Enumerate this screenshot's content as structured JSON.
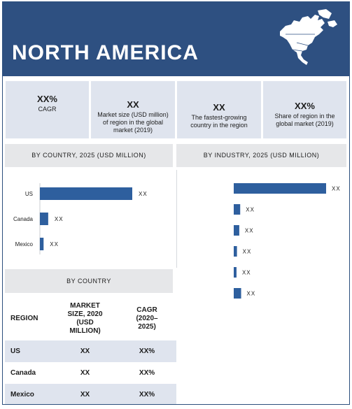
{
  "header": {
    "title": "NORTH AMERICA"
  },
  "kpis": [
    {
      "value": "XX%",
      "label": "CAGR"
    },
    {
      "value": "XX",
      "label": "Market size (USD million) of region in the global market (2019)"
    },
    {
      "value": "XX",
      "label": "The fastest-growing country in the region"
    },
    {
      "value": "XX%",
      "label": "Share of region in the global market (2019)"
    }
  ],
  "sections": {
    "by_country_head": "BY COUNTRY, 2025 (USD MILLION)",
    "by_industry_head": "BY INDUSTRY, 2025 (USD MILLION)",
    "table_head": "BY COUNTRY"
  },
  "chart_data": [
    {
      "type": "bar",
      "orientation": "horizontal",
      "title": "BY COUNTRY, 2025 (USD MILLION)",
      "categories": [
        "US",
        "Canada",
        "Mexico"
      ],
      "values": [
        100,
        9,
        4
      ],
      "data_labels": [
        "XX",
        "XX",
        "XX"
      ],
      "xlim": [
        0,
        100
      ]
    },
    {
      "type": "bar",
      "orientation": "horizontal",
      "title": "BY INDUSTRY, 2025 (USD MILLION)",
      "categories": [
        "",
        "",
        "",
        "",
        "",
        ""
      ],
      "values": [
        100,
        7,
        6,
        3.5,
        3,
        8
      ],
      "data_labels": [
        "XX",
        "XX",
        "XX",
        "XX",
        "XX",
        "XX"
      ],
      "xlim": [
        0,
        100
      ]
    }
  ],
  "table": {
    "columns": [
      "REGION",
      "MARKET SIZE, 2020 (USD MILLION)",
      "CAGR (2020–2025)"
    ],
    "rows": [
      {
        "region": "US",
        "size": "XX",
        "cagr": "XX%"
      },
      {
        "region": "Canada",
        "size": "XX",
        "cagr": "XX%"
      },
      {
        "region": "Mexico",
        "size": "XX",
        "cagr": "XX%"
      }
    ]
  }
}
